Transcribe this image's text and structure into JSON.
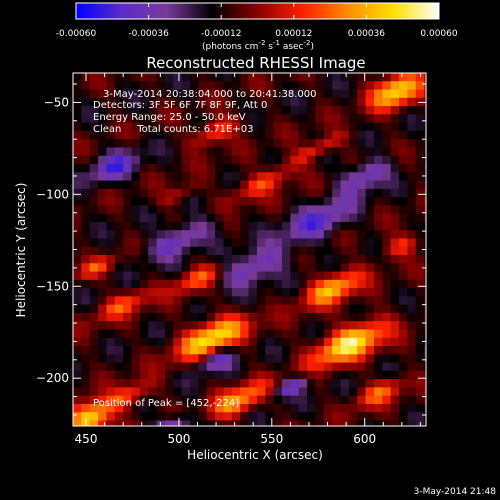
{
  "colorbar": {
    "tick_labels": [
      "-0.00060",
      "-0.00036",
      "-0.00012",
      "0.00012",
      "0.00036",
      "0.00060"
    ],
    "ticks": [
      -0.0006,
      -0.00036,
      -0.00012,
      0.00012,
      0.00036,
      0.0006
    ],
    "range": [
      -0.0006,
      0.0006
    ],
    "units_prefix": "(photons cm",
    "units_sup1": "-2",
    "units_mid1": " s",
    "units_sup2": "-1",
    "units_mid2": " asec",
    "units_sup3": "-2",
    "units_suffix": ")",
    "colormap": [
      "#0000ff",
      "#5a2cc8",
      "#7a3a9a",
      "#000000",
      "#8a0000",
      "#ff2000",
      "#ff8c00",
      "#ffe000",
      "#ffffff"
    ]
  },
  "chart_data": {
    "type": "heatmap",
    "title": "Reconstructed RHESSI Image",
    "xlabel": "Heliocentric X (arcsec)",
    "ylabel": "Heliocentric Y (arcsec)",
    "xlim": [
      443,
      633
    ],
    "ylim": [
      -226,
      -34
    ],
    "x_ticks": [
      450,
      500,
      550,
      600
    ],
    "y_ticks": [
      -50,
      -100,
      -150,
      -200
    ],
    "x_tick_labels": [
      "450",
      "500",
      "550",
      "600"
    ],
    "y_tick_labels": [
      "−50",
      "−100",
      "−150",
      "−200"
    ],
    "header_lines": [
      "3-May-2014 20:38:04.000 to 20:41:38.000",
      "Detectors: 3F 5F 6F 7F 8F 9F, Att 0",
      "Energy Range: 25.0 - 50.0 keV",
      "Clean     Total counts: 6.71E+03"
    ],
    "peak_annotation": "Position of Peak = [452,-224]",
    "peak": [
      452,
      -224
    ],
    "value_range": [
      -0.0006,
      0.0006
    ]
  },
  "footer": {
    "timestamp": "3-May-2014 21:48"
  }
}
